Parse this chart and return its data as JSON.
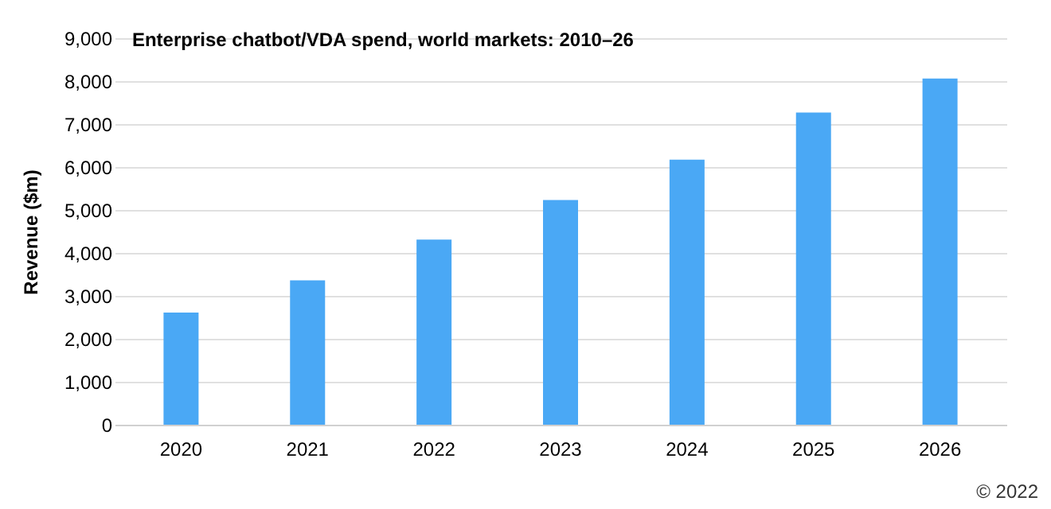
{
  "chart_data": {
    "type": "bar",
    "title": "Enterprise chatbot/VDA spend, world markets: 2010–26",
    "ylabel": "Revenue ($m)",
    "categories": [
      "2020",
      "2021",
      "2022",
      "2023",
      "2024",
      "2025",
      "2026"
    ],
    "values": [
      2610,
      3360,
      4310,
      5230,
      6170,
      7270,
      8060
    ],
    "color": "#4aa8f5",
    "ylim": [
      0,
      9000
    ],
    "yticks": [
      0,
      {
        "value": 1000,
        "label": "1,000"
      },
      {
        "value": 2000,
        "label": "2,000"
      },
      {
        "value": 3000,
        "label": "3,000"
      },
      {
        "value": 4000,
        "label": "4,000"
      },
      {
        "value": 5000,
        "label": "5,000"
      },
      {
        "value": 6000,
        "label": "6,000"
      },
      {
        "value": 7000,
        "label": "7,000"
      },
      {
        "value": 8000,
        "label": "8,000"
      },
      {
        "value": 9000,
        "label": "9,000"
      }
    ],
    "grid": "y",
    "annotations": [
      "© 2022"
    ]
  }
}
